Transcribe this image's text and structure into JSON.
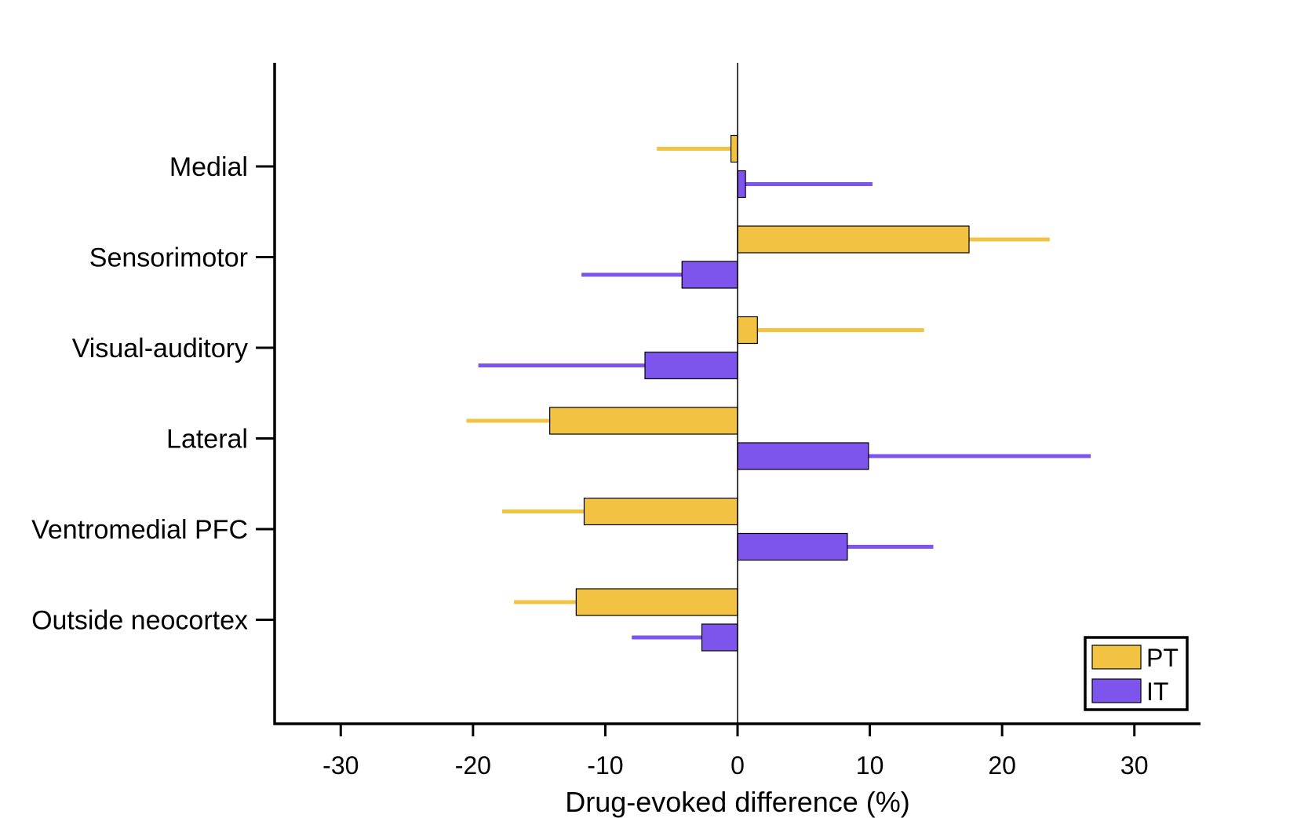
{
  "chart_data": {
    "type": "bar",
    "orientation": "horizontal",
    "xlabel": "Drug-evoked difference (%)",
    "xlim": [
      -35,
      35
    ],
    "xticks": [
      -30,
      -20,
      -10,
      0,
      10,
      20,
      30
    ],
    "categories": [
      "Medial",
      "Sensorimotor",
      "Visual-auditory",
      "Lateral",
      "Ventromedial PFC",
      "Outside neocortex"
    ],
    "series": [
      {
        "name": "PT",
        "color": "#F2C343",
        "values": [
          -0.5,
          17.5,
          1.5,
          -14.2,
          -11.6,
          -12.2
        ],
        "error": [
          5.6,
          6.1,
          12.6,
          6.3,
          6.2,
          4.7
        ]
      },
      {
        "name": "IT",
        "color": "#7E55EC",
        "values": [
          0.6,
          -4.2,
          -7.0,
          9.9,
          8.3,
          -2.7
        ],
        "error": [
          9.6,
          7.6,
          12.6,
          16.8,
          6.5,
          5.3
        ]
      }
    ],
    "legend": "bottom-right",
    "grid": false
  }
}
